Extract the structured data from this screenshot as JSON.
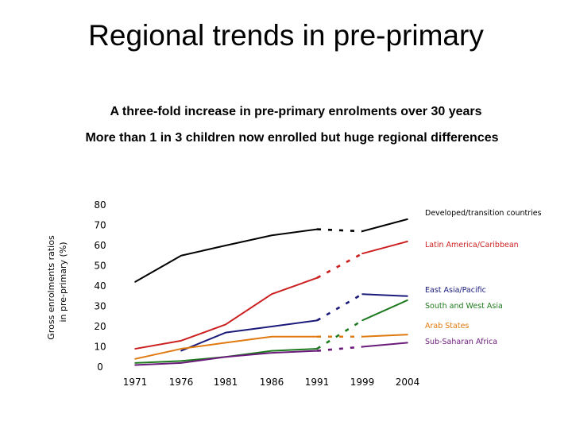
{
  "slide": {
    "title": "Regional trends in pre-primary",
    "subtitle1": "A three-fold increase in pre-primary enrolments over 30 years",
    "subtitle2": "More than 1 in 3 children now enrolled  but huge regional differences"
  },
  "chart_data": {
    "type": "line",
    "title": "",
    "ylabel_line1": "Gross enrolments ratios",
    "ylabel_line2": "in pre-primary (%)",
    "xlabel": "",
    "categories": [
      "1971",
      "1976",
      "1981",
      "1986",
      "1991",
      "1999",
      "2004"
    ],
    "yticks": [
      0,
      10,
      20,
      30,
      40,
      50,
      60,
      70,
      80
    ],
    "ylim": [
      0,
      80
    ],
    "gap_note": "dashed segment between 1991 and 1999",
    "series": [
      {
        "name": "Developed/transition countries",
        "color": "#000000",
        "values": [
          42,
          55,
          60,
          65,
          68,
          67,
          73
        ]
      },
      {
        "name": "Latin America/Caribbean",
        "color": "#cc2020",
        "values": [
          9,
          13,
          21,
          36,
          44,
          56,
          62
        ]
      },
      {
        "name": "East Asia/Pacific",
        "color": "#1a1a7a",
        "values": [
          null,
          8,
          17,
          20,
          23,
          36,
          35
        ]
      },
      {
        "name": "South and West Asia",
        "color": "#1e7a1e",
        "values": [
          2,
          3,
          5,
          8,
          9,
          23,
          33
        ]
      },
      {
        "name": "Arab States",
        "color": "#e07a10",
        "values": [
          4,
          9,
          12,
          15,
          15,
          15,
          16
        ]
      },
      {
        "name": "Sub-Saharan Africa",
        "color": "#6a1a7a",
        "values": [
          1,
          2,
          5,
          7,
          8,
          10,
          12
        ]
      }
    ]
  }
}
